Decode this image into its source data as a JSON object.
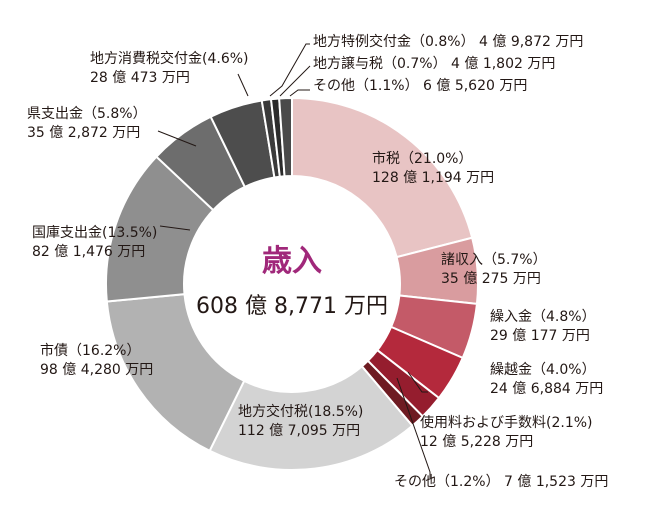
{
  "chart_data": {
    "type": "pie",
    "donut": true,
    "title": "歳入",
    "total": "608 億 8,771 万円",
    "slices": [
      {
        "name": "市税",
        "percent": 21.0,
        "percent_label": "（21.0%）",
        "amount": "128 億 1,194 万円",
        "color": "#e8c4c4"
      },
      {
        "name": "諸収入",
        "percent": 5.7,
        "percent_label": "（5.7%）",
        "amount": "35 億 275 万円",
        "color": "#d99c9f"
      },
      {
        "name": "繰入金",
        "percent": 4.8,
        "percent_label": "（4.8%）",
        "amount": "29 億 177 万円",
        "color": "#c45a68"
      },
      {
        "name": "繰越金",
        "percent": 4.0,
        "percent_label": "（4.0%）",
        "amount": "24 億 6,884 万円",
        "color": "#b4293c"
      },
      {
        "name": "使用料および手数料",
        "percent": 2.1,
        "percent_label": "(2.1%)",
        "amount": "12 億 5,228 万円",
        "color": "#951d2e"
      },
      {
        "name": "その他",
        "percent": 1.2,
        "percent_label": "（1.2%）",
        "amount": "7 億 1,523 万円",
        "color": "#6e1b22"
      },
      {
        "name": "地方交付税",
        "percent": 18.5,
        "percent_label": "(18.5%)",
        "amount": "112 億 7,095 万円",
        "color": "#d3d3d3"
      },
      {
        "name": "市債",
        "percent": 16.2,
        "percent_label": "（16.2%）",
        "amount": "98 億 4,280 万円",
        "color": "#b2b2b2"
      },
      {
        "name": "国庫支出金",
        "percent": 13.5,
        "percent_label": "(13.5%)",
        "amount": "82 億 1,476 万円",
        "color": "#8f8f8f"
      },
      {
        "name": "県支出金",
        "percent": 5.8,
        "percent_label": "（5.8%）",
        "amount": "35 億 2,872 万円",
        "color": "#6d6d6d"
      },
      {
        "name": "地方消費税交付金",
        "percent": 4.6,
        "percent_label": "(4.6%)",
        "amount": "28 億 473 万円",
        "color": "#4d4d4d"
      },
      {
        "name": "地方特例交付金",
        "percent": 0.8,
        "percent_label": "（0.8%）",
        "amount": "4 億 9,872 万円",
        "color": "#3a3a3a"
      },
      {
        "name": "地方譲与税",
        "percent": 0.7,
        "percent_label": "（0.7%）",
        "amount": "4 億 1,802 万円",
        "color": "#2b2b2b"
      },
      {
        "name": "その他",
        "percent": 1.1,
        "percent_label": "（1.1%）",
        "amount": "6 億 5,620 万円",
        "color": "#4a4a4a"
      }
    ]
  }
}
